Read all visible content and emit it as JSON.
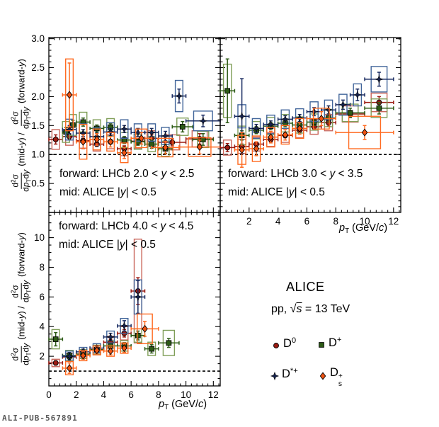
{
  "watermark": "ALI-PUB-567891",
  "legend": {
    "title": "ALICE",
    "subtitle": [
      {
        "t": "pp, "
      },
      {
        "t": "√"
      },
      {
        "t": "s",
        "i": true,
        "ol": true
      },
      {
        "t": " = 13 TeV"
      }
    ],
    "entries": [
      {
        "series": "D0",
        "label": [
          {
            "t": "D"
          },
          {
            "t": "0",
            "sup": true
          }
        ]
      },
      {
        "series": "Dplus",
        "label": [
          {
            "t": "D"
          },
          {
            "t": "+",
            "sup": true
          }
        ]
      },
      {
        "series": "Dstar",
        "label": [
          {
            "t": "D"
          },
          {
            "t": "*+",
            "sup": true
          }
        ]
      },
      {
        "series": "Ds",
        "label": [
          {
            "t": "D"
          },
          {
            "supsub": {
              "sup": "+",
              "sub": "s"
            }
          }
        ]
      }
    ]
  },
  "axes": {
    "x_title": [
      {
        "t": "p",
        "i": true
      },
      {
        "t": "T",
        "sub": true
      },
      {
        "t": " (GeV/"
      },
      {
        "t": "c",
        "i": true
      },
      {
        "t": ")"
      }
    ],
    "y_title": {
      "num": [
        {
          "t": "d"
        },
        {
          "t": "2",
          "sup": true
        },
        {
          "t": "σ"
        }
      ],
      "den": [
        {
          "t": "d"
        },
        {
          "t": "p",
          "i": true
        },
        {
          "t": "T",
          "sub": true
        },
        {
          "t": "d"
        },
        {
          "t": "y",
          "i": true
        }
      ],
      "mid": [
        {
          "t": "(mid-"
        },
        {
          "t": "y",
          "i": true
        },
        {
          "t": ") / "
        }
      ],
      "fwd": [
        {
          "t": "(forward-"
        },
        {
          "t": "y",
          "i": true
        },
        {
          "t": ")"
        }
      ]
    }
  },
  "series_styles": {
    "D0": {
      "marker": "circle",
      "color": "#9b1b12",
      "line": "#9b1b12",
      "box": "#c9655a"
    },
    "Dplus": {
      "marker": "square",
      "color": "#2d5b16",
      "line": "#2d5b16",
      "box": "#7f9e58"
    },
    "Dstar": {
      "marker": "star4",
      "color": "#15224e",
      "line": "#1b2d63",
      "box": "#41659a"
    },
    "Ds": {
      "marker": "diamond",
      "color": "#ee5211",
      "line": "#ff6a20",
      "box": "#ff6a20"
    }
  },
  "chart_data": {
    "type": "scatter",
    "point_format": [
      "pt_gev",
      "pt_halfwidth",
      "ratio",
      "stat_err",
      "syst_box_halfheight"
    ],
    "panels": [
      {
        "id": "top-left",
        "annotation": [
          [
            {
              "t": "forward: LHCb 2.0 < "
            },
            {
              "t": "y",
              "i": true
            },
            {
              "t": " < 2.5"
            }
          ],
          [
            {
              "t": "mid: ALICE |"
            },
            {
              "t": "y",
              "i": true
            },
            {
              "t": "| < 0.5"
            }
          ]
        ],
        "x": {
          "min": 0,
          "max": 12.5,
          "major_step": 2,
          "minor_step": 0.4,
          "show_labels": false,
          "show_zero": false
        },
        "y": {
          "min": 0,
          "max": 3.02,
          "major_step": 0.5,
          "minor_step": 0.1,
          "show_labels": true,
          "decimals": 1
        },
        "dashed_line_y": 1.0,
        "series": {
          "D0": [
            [
              0.5,
              0.5,
              1.26,
              0.08,
              0.17
            ],
            [
              1.5,
              0.5,
              1.31,
              0.05,
              0.15
            ],
            [
              2.5,
              0.5,
              1.24,
              0.04,
              0.13
            ],
            [
              3.5,
              0.5,
              1.18,
              0.04,
              0.12
            ],
            [
              4.5,
              0.5,
              1.22,
              0.04,
              0.12
            ],
            [
              5.5,
              0.5,
              1.1,
              0.05,
              0.12
            ],
            [
              6.5,
              0.5,
              1.23,
              0.05,
              0.12
            ],
            [
              7.5,
              0.5,
              1.28,
              0.06,
              0.13
            ],
            [
              9.0,
              1.0,
              1.21,
              0.06,
              0.13
            ],
            [
              11.0,
              1.0,
              1.27,
              0.09,
              0.14
            ]
          ],
          "Dplus": [
            [
              1.25,
              0.25,
              1.39,
              0.08,
              0.18
            ],
            [
              1.75,
              0.25,
              1.51,
              0.08,
              0.18
            ],
            [
              2.5,
              0.5,
              1.56,
              0.07,
              0.17
            ],
            [
              3.5,
              0.5,
              1.45,
              0.06,
              0.15
            ],
            [
              4.5,
              0.5,
              1.47,
              0.06,
              0.15
            ],
            [
              5.5,
              0.5,
              1.25,
              0.06,
              0.13
            ],
            [
              6.5,
              0.5,
              1.22,
              0.06,
              0.13
            ],
            [
              7.5,
              0.5,
              1.18,
              0.07,
              0.13
            ],
            [
              8.5,
              0.5,
              1.1,
              0.08,
              0.13
            ],
            [
              9.75,
              0.75,
              1.48,
              0.09,
              0.15
            ],
            [
              11.25,
              0.75,
              1.26,
              0.1,
              0.14
            ]
          ],
          "Dstar": [
            [
              1.5,
              0.5,
              1.43,
              0.07,
              0.18
            ],
            [
              2.5,
              0.5,
              1.37,
              0.06,
              0.16
            ],
            [
              3.5,
              0.5,
              1.31,
              0.06,
              0.15
            ],
            [
              4.5,
              0.5,
              1.39,
              0.06,
              0.16
            ],
            [
              5.5,
              0.5,
              1.44,
              0.06,
              0.16
            ],
            [
              6.5,
              0.5,
              1.38,
              0.07,
              0.15
            ],
            [
              7.5,
              0.5,
              1.38,
              0.07,
              0.15
            ],
            [
              8.5,
              0.5,
              1.32,
              0.08,
              0.15
            ],
            [
              9.5,
              0.5,
              2.01,
              0.12,
              0.27
            ],
            [
              11.25,
              1.25,
              1.58,
              0.1,
              0.17
            ]
          ],
          "Ds": [
            [
              1.5,
              0.5,
              2.03,
              0.55,
              0.62
            ],
            [
              2.5,
              0.5,
              1.22,
              0.12,
              0.3
            ],
            [
              3.5,
              0.5,
              1.26,
              0.1,
              0.18
            ],
            [
              4.5,
              0.5,
              1.22,
              0.09,
              0.16
            ],
            [
              5.5,
              0.5,
              1.03,
              0.1,
              0.17
            ],
            [
              6.75,
              0.75,
              1.28,
              0.1,
              0.16
            ],
            [
              8.5,
              1.0,
              1.12,
              0.11,
              0.16
            ],
            [
              11.0,
              1.5,
              1.13,
              0.12,
              0.16
            ]
          ]
        }
      },
      {
        "id": "top-right",
        "annotation": [
          [
            {
              "t": "forward: LHCb 3.0 < "
            },
            {
              "t": "y",
              "i": true
            },
            {
              "t": " < 3.5"
            }
          ],
          [
            {
              "t": "mid: ALICE |"
            },
            {
              "t": "y",
              "i": true
            },
            {
              "t": "| < 0.5"
            }
          ]
        ],
        "x": {
          "min": 0,
          "max": 12.5,
          "major_step": 2,
          "minor_step": 0.4,
          "show_labels": true,
          "show_zero": false
        },
        "y": {
          "min": 0,
          "max": 3.02,
          "major_step": 0.5,
          "minor_step": 0.1,
          "show_labels": false,
          "decimals": 1
        },
        "dashed_line_y": 1.0,
        "series": {
          "D0": [
            [
              0.5,
              0.5,
              1.12,
              0.07,
              0.13
            ],
            [
              1.5,
              0.5,
              1.14,
              0.04,
              0.12
            ],
            [
              2.5,
              0.5,
              1.18,
              0.04,
              0.12
            ],
            [
              3.5,
              0.5,
              1.26,
              0.04,
              0.12
            ],
            [
              4.5,
              0.5,
              1.33,
              0.04,
              0.12
            ],
            [
              5.5,
              0.5,
              1.42,
              0.05,
              0.13
            ],
            [
              6.5,
              0.5,
              1.48,
              0.05,
              0.13
            ],
            [
              7.5,
              0.5,
              1.55,
              0.06,
              0.14
            ],
            [
              9.0,
              1.0,
              1.7,
              0.06,
              0.14
            ],
            [
              11.0,
              1.0,
              1.9,
              0.1,
              0.16
            ]
          ],
          "Dplus": [
            [
              0.5,
              0.5,
              2.1,
              0.55,
              0.46
            ],
            [
              1.5,
              0.5,
              1.33,
              0.08,
              0.16
            ],
            [
              2.5,
              0.5,
              1.42,
              0.06,
              0.15
            ],
            [
              3.5,
              0.5,
              1.49,
              0.06,
              0.15
            ],
            [
              4.5,
              0.5,
              1.54,
              0.06,
              0.15
            ],
            [
              5.5,
              0.5,
              1.51,
              0.06,
              0.14
            ],
            [
              6.5,
              0.5,
              1.56,
              0.06,
              0.14
            ],
            [
              7.5,
              0.5,
              1.63,
              0.07,
              0.15
            ],
            [
              9.0,
              1.0,
              1.72,
              0.08,
              0.15
            ],
            [
              11.0,
              1.0,
              1.8,
              0.1,
              0.16
            ]
          ],
          "Dstar": [
            [
              1.5,
              0.5,
              1.66,
              0.65,
              0.2
            ],
            [
              2.5,
              0.5,
              1.45,
              0.07,
              0.17
            ],
            [
              3.5,
              0.5,
              1.52,
              0.06,
              0.16
            ],
            [
              4.5,
              0.5,
              1.61,
              0.06,
              0.16
            ],
            [
              5.5,
              0.5,
              1.63,
              0.06,
              0.16
            ],
            [
              6.5,
              0.5,
              1.74,
              0.07,
              0.17
            ],
            [
              7.5,
              0.5,
              1.77,
              0.07,
              0.17
            ],
            [
              8.5,
              0.5,
              1.86,
              0.08,
              0.18
            ],
            [
              9.5,
              0.5,
              2.03,
              0.1,
              0.19
            ],
            [
              11.0,
              1.0,
              2.3,
              0.12,
              0.22
            ]
          ],
          "Ds": [
            [
              1.5,
              0.5,
              1.08,
              0.3,
              0.25
            ],
            [
              2.5,
              0.5,
              1.1,
              0.12,
              0.22
            ],
            [
              3.5,
              0.5,
              1.3,
              0.1,
              0.17
            ],
            [
              4.5,
              0.5,
              1.34,
              0.09,
              0.16
            ],
            [
              5.5,
              0.5,
              1.45,
              0.1,
              0.17
            ],
            [
              7.0,
              1.0,
              1.62,
              0.12,
              0.18
            ],
            [
              10.0,
              2.0,
              1.38,
              0.12,
              0.28
            ]
          ]
        }
      },
      {
        "id": "bottom-left",
        "annotation": [
          [
            {
              "t": "forward: LHCb 4.0 < "
            },
            {
              "t": "y",
              "i": true
            },
            {
              "t": " < 4.5"
            }
          ],
          [
            {
              "t": "mid: ALICE |"
            },
            {
              "t": "y",
              "i": true
            },
            {
              "t": "| < 0.5"
            }
          ]
        ],
        "x": {
          "min": 0,
          "max": 12.5,
          "major_step": 2,
          "minor_step": 0.4,
          "show_labels": true,
          "show_zero": true
        },
        "y": {
          "min": 0,
          "max": 11.7,
          "major_step": 2,
          "minor_step": 0.5,
          "show_labels": true,
          "decimals": 0
        },
        "dashed_line_y": 1.0,
        "series": {
          "D0": [
            [
              0.5,
              0.5,
              1.55,
              0.15,
              0.25
            ],
            [
              1.5,
              0.5,
              1.95,
              0.12,
              0.25
            ],
            [
              2.5,
              0.5,
              2.15,
              0.12,
              0.25
            ],
            [
              3.5,
              0.5,
              2.4,
              0.15,
              0.3
            ],
            [
              4.5,
              0.5,
              2.95,
              0.2,
              0.4
            ],
            [
              5.5,
              0.5,
              3.55,
              0.25,
              0.45
            ],
            [
              6.5,
              0.5,
              6.4,
              0.9,
              3.5
            ]
          ],
          "Dplus": [
            [
              0.5,
              0.5,
              3.15,
              0.45,
              0.65
            ],
            [
              1.5,
              0.5,
              2.05,
              0.2,
              0.35
            ],
            [
              2.5,
              0.5,
              2.15,
              0.18,
              0.3
            ],
            [
              3.5,
              0.5,
              2.45,
              0.18,
              0.3
            ],
            [
              4.5,
              0.5,
              2.7,
              0.2,
              0.35
            ],
            [
              5.5,
              0.5,
              2.7,
              0.22,
              0.35
            ],
            [
              6.5,
              0.5,
              3.4,
              0.3,
              0.45
            ],
            [
              7.5,
              0.5,
              2.5,
              0.28,
              0.45
            ],
            [
              8.75,
              0.75,
              2.9,
              0.3,
              0.85
            ]
          ],
          "Dstar": [
            [
              1.5,
              0.5,
              2.0,
              0.25,
              0.35
            ],
            [
              2.5,
              0.5,
              2.3,
              0.18,
              0.3
            ],
            [
              3.5,
              0.5,
              2.55,
              0.18,
              0.3
            ],
            [
              4.5,
              0.5,
              3.3,
              0.25,
              0.4
            ],
            [
              5.5,
              0.5,
              4.05,
              0.35,
              0.5
            ],
            [
              6.5,
              0.5,
              6.0,
              1.1,
              1.15
            ]
          ],
          "Ds": [
            [
              1.5,
              0.5,
              1.2,
              0.35,
              0.45
            ],
            [
              2.5,
              0.5,
              2.05,
              0.25,
              0.35
            ],
            [
              3.5,
              0.5,
              2.4,
              0.22,
              0.3
            ],
            [
              4.5,
              0.5,
              2.35,
              0.25,
              0.35
            ],
            [
              5.5,
              0.5,
              2.55,
              0.28,
              0.35
            ],
            [
              7.0,
              1.0,
              3.85,
              0.5,
              1.0
            ]
          ]
        }
      }
    ]
  }
}
